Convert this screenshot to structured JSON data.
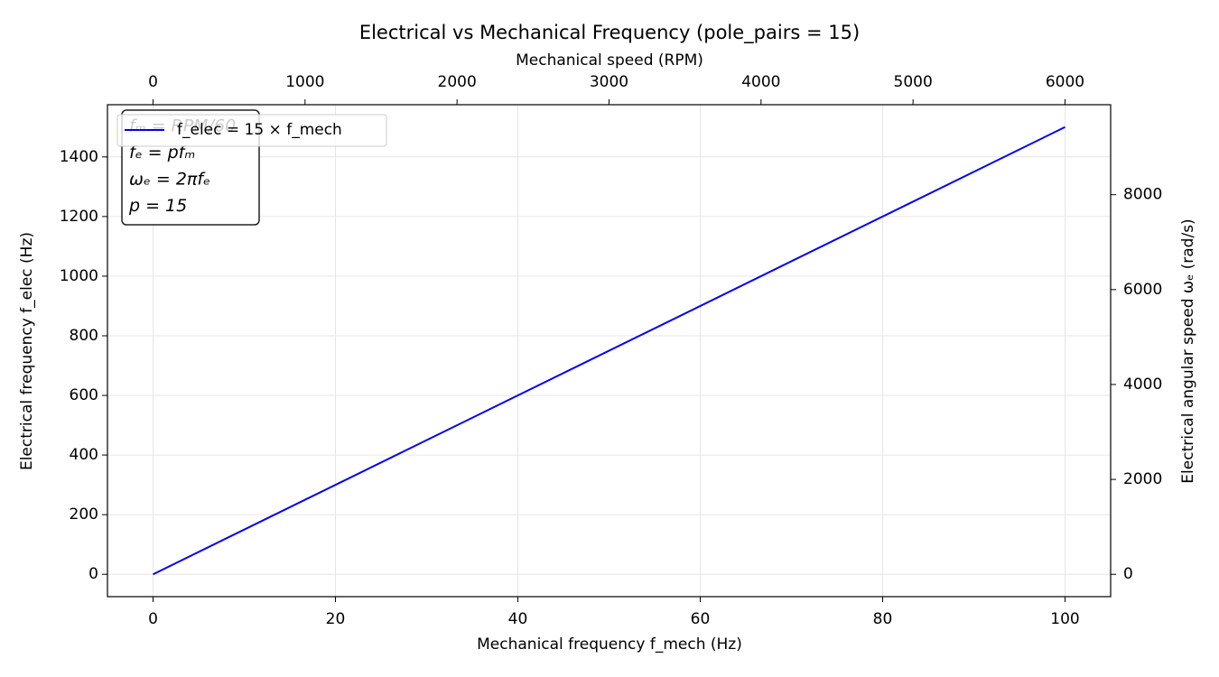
{
  "chart_data": {
    "type": "line",
    "title": "Electrical vs Mechanical Frequency (pole_pairs = 15)",
    "x_label": "Mechanical frequency f_mech (Hz)",
    "y_label": "Electrical frequency f_elec (Hz)",
    "xlim": [
      -5,
      105
    ],
    "xticks": [
      0,
      20,
      40,
      60,
      80,
      100
    ],
    "ylim": [
      -75,
      1575
    ],
    "yticks": [
      0,
      200,
      400,
      600,
      800,
      1000,
      1200,
      1400
    ],
    "top_axis": {
      "label": "Mechanical speed (RPM)",
      "xlim": [
        -300,
        6300
      ],
      "xticks": [
        0,
        1000,
        2000,
        3000,
        4000,
        5000,
        6000
      ]
    },
    "y2_label": "Electrical angular speed ωₑ (rad/s)",
    "y2lim": [
      -471.2,
      9896
    ],
    "y2ticks": [
      0,
      2000,
      4000,
      6000,
      8000
    ],
    "grid": true,
    "legend": "upper left",
    "series": [
      {
        "name": "f_elec = 15 × f_mech",
        "color": "#0000ff",
        "x": [
          0,
          100
        ],
        "values": [
          0,
          1500
        ]
      }
    ],
    "annotation": [
      "fₘ = RPM/60",
      "fₑ = pfₘ",
      "ωₑ = 2πfₑ",
      "p = 15"
    ]
  }
}
